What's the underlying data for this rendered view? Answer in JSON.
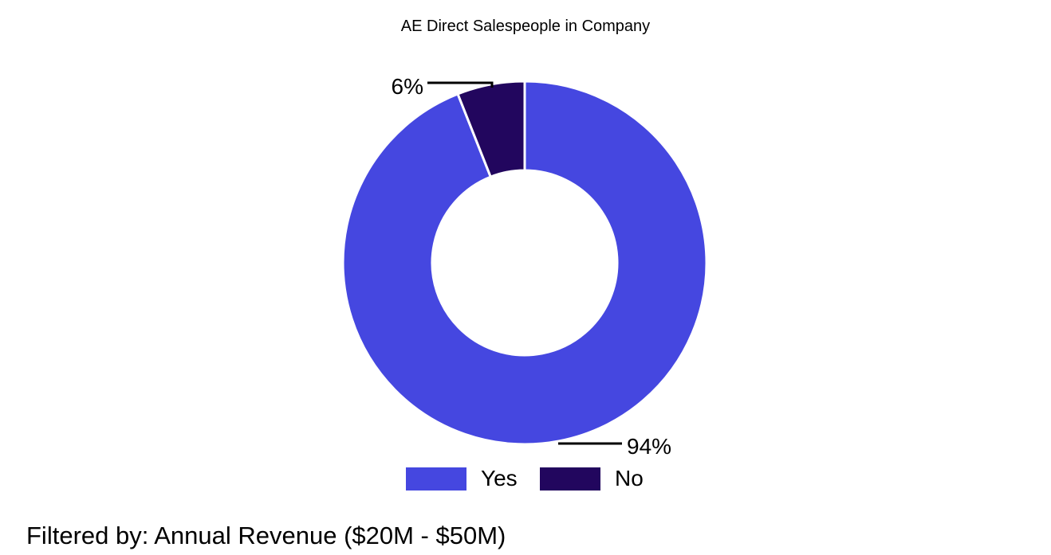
{
  "chart_data": {
    "type": "pie",
    "subtype": "donut",
    "title": "AE Direct Salespeople in Company",
    "categories": [
      "Yes",
      "No"
    ],
    "values": [
      94,
      6
    ],
    "data_labels": [
      "94%",
      "6%"
    ],
    "colors": [
      "#4547e0",
      "#22065e"
    ],
    "legend": "bottom"
  },
  "footer": {
    "filter_text": "Filtered by: Annual Revenue ($20M - $50M)"
  }
}
